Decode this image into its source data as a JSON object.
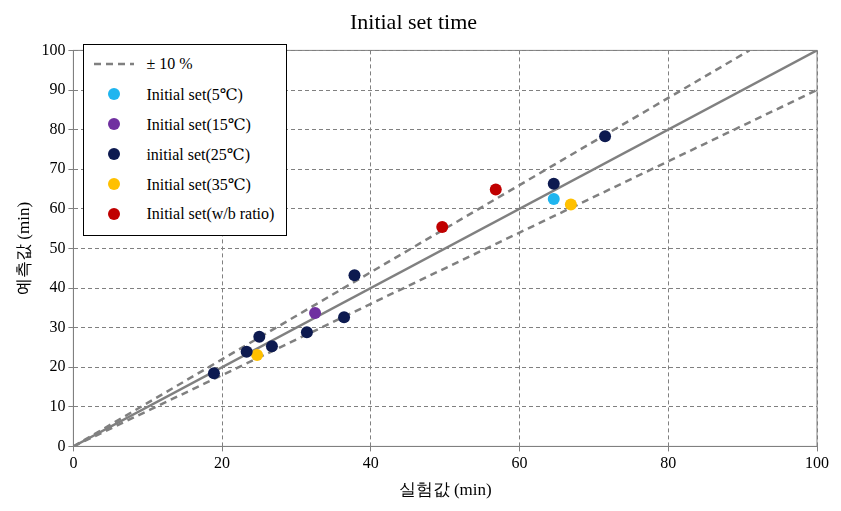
{
  "chart_data": {
    "type": "scatter",
    "title": "Initial set time",
    "x_label": "실험값 (min)",
    "y_label": "예측값 (min)",
    "xlim": [
      0,
      100
    ],
    "xticks": [
      0,
      20,
      40,
      60,
      80,
      100
    ],
    "ylim": [
      0,
      100
    ],
    "yticks": [
      0,
      10,
      20,
      30,
      40,
      50,
      60,
      70,
      80,
      90,
      100
    ],
    "grid": true,
    "legend": "upper left",
    "series": [
      {
        "name": "± 10 %",
        "type": "line",
        "line_style": "dashed",
        "color": "#808080",
        "x": [
          0,
          90.91,
          null,
          0,
          100
        ],
        "values": [
          0,
          100,
          null,
          0,
          90
        ]
      },
      {
        "type": "line",
        "line_style": "solid",
        "color": "#808080",
        "x": [
          0,
          100
        ],
        "values": [
          0,
          100
        ]
      },
      {
        "name": "Initial set(5℃)",
        "type": "scatter",
        "marker": "circle",
        "color": "#1fb5ef",
        "x": [
          64.6
        ],
        "values": [
          62.5
        ]
      },
      {
        "name": "Initial set(15℃)",
        "type": "scatter",
        "marker": "circle",
        "color": "#7030a0",
        "x": [
          32.5
        ],
        "values": [
          33.7
        ]
      },
      {
        "name": "initial set(25℃)",
        "type": "scatter",
        "marker": "circle",
        "color": "#0d1a50",
        "x": [
          18.9,
          23.3,
          25.0,
          26.7,
          31.4,
          36.4,
          37.8,
          64.6,
          71.5
        ],
        "values": [
          18.5,
          23.9,
          27.7,
          25.3,
          28.8,
          32.6,
          43.2,
          66.3,
          78.3
        ]
      },
      {
        "name": "Initial set(35℃)",
        "type": "scatter",
        "marker": "circle",
        "color": "#ffc000",
        "x": [
          24.7,
          66.9
        ],
        "values": [
          23.1,
          61.1
        ]
      },
      {
        "name": "Initial set(w/b ratio)",
        "type": "scatter",
        "marker": "circle",
        "color": "#c00000",
        "x": [
          49.6,
          56.8
        ],
        "values": [
          55.4,
          64.9
        ]
      }
    ]
  }
}
